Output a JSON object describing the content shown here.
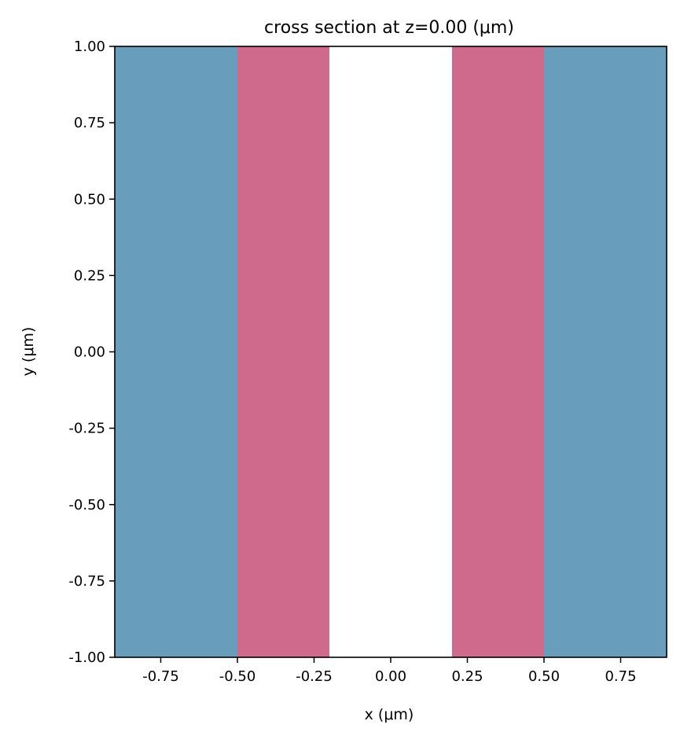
{
  "chart_data": {
    "type": "area",
    "title": "cross section at z=0.00 (μm)",
    "xlabel": "x (μm)",
    "ylabel": "y (μm)",
    "xlim": [
      -0.9,
      0.9
    ],
    "ylim": [
      -1.0,
      1.0
    ],
    "x_ticks": [
      -0.75,
      -0.5,
      -0.25,
      0.0,
      0.25,
      0.5,
      0.75
    ],
    "x_tick_labels": [
      "-0.75",
      "-0.50",
      "-0.25",
      "0.00",
      "0.25",
      "0.50",
      "0.75"
    ],
    "y_ticks": [
      1.0,
      0.75,
      0.5,
      0.25,
      0.0,
      -0.25,
      -0.5,
      -0.75,
      -1.0
    ],
    "y_tick_labels": [
      "1.00",
      "0.75",
      "0.50",
      "0.25",
      "0.00",
      "-0.25",
      "-0.50",
      "-0.75",
      "-1.00"
    ],
    "grid": false,
    "regions": [
      {
        "x0": -0.9,
        "x1": -0.5,
        "color": "#689dbc"
      },
      {
        "x0": -0.5,
        "x1": -0.2,
        "color": "#cf6a8c"
      },
      {
        "x0": -0.2,
        "x1": 0.2,
        "color": "#ffffff"
      },
      {
        "x0": 0.2,
        "x1": 0.5,
        "color": "#cf6a8c"
      },
      {
        "x0": 0.5,
        "x1": 0.9,
        "color": "#689dbc"
      }
    ]
  }
}
